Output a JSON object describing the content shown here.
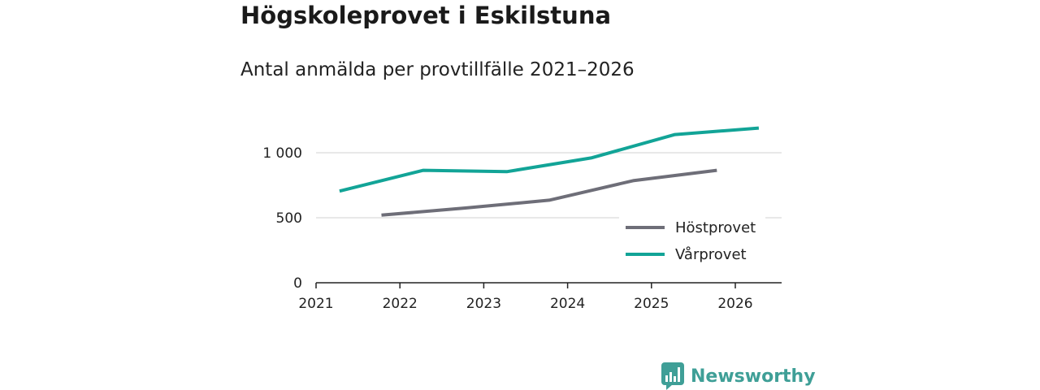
{
  "header": {
    "title": "Högskoleprovet i Eskilstuna",
    "subtitle": "Antal anmälda per provtillfälle 2021–2026"
  },
  "chart_data": {
    "type": "line",
    "title": "Högskoleprovet i Eskilstuna",
    "subtitle": "Antal anmälda per provtillfälle 2021–2026",
    "xlabel": "",
    "ylabel": "",
    "x_ticks": [
      "2021",
      "2022",
      "2023",
      "2024",
      "2025",
      "2026"
    ],
    "y_ticks": [
      {
        "value": 0,
        "label": "0"
      },
      {
        "value": 500,
        "label": "500"
      },
      {
        "value": 1000,
        "label": "1 000"
      }
    ],
    "ylim": [
      0,
      1200
    ],
    "xlim": [
      2021,
      2026.55
    ],
    "grid": true,
    "legend_position": "bottom-right",
    "series": [
      {
        "name": "Höstprovet",
        "color": "#6e6e78",
        "points": [
          {
            "x": 2021.78,
            "y": 520
          },
          {
            "x": 2022.78,
            "y": 575
          },
          {
            "x": 2023.78,
            "y": 635
          },
          {
            "x": 2024.78,
            "y": 785
          },
          {
            "x": 2025.78,
            "y": 865
          }
        ]
      },
      {
        "name": "Vårprovet",
        "color": "#12a497",
        "points": [
          {
            "x": 2021.28,
            "y": 705
          },
          {
            "x": 2022.28,
            "y": 865
          },
          {
            "x": 2023.28,
            "y": 855
          },
          {
            "x": 2024.28,
            "y": 960
          },
          {
            "x": 2025.28,
            "y": 1140
          },
          {
            "x": 2026.28,
            "y": 1190
          }
        ]
      }
    ]
  },
  "brand": {
    "name": "Newsworthy",
    "logo_icon": "bar-chart-speech-bubble-icon",
    "color": "#3f9f97"
  }
}
